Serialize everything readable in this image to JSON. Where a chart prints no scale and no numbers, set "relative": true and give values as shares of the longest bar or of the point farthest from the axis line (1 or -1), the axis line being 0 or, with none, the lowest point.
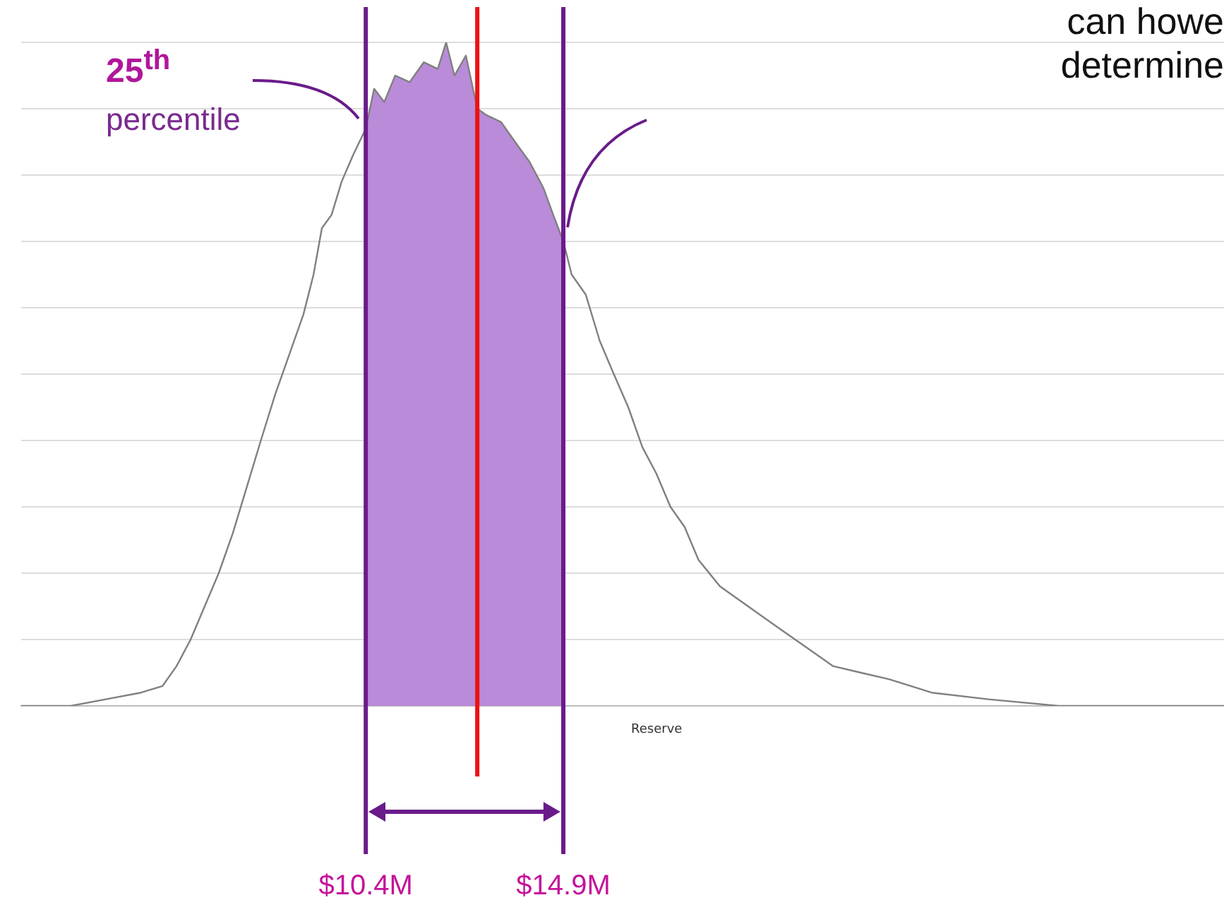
{
  "chart_data": {
    "type": "line",
    "relative": true,
    "xlabel": "Reserve",
    "color": "#808080",
    "grid": "y",
    "tick_labels": "x",
    "legend": false,
    "marker": "none",
    "x": [
      2.55,
      3.68,
      4.48,
      5.28,
      5.77,
      6.09,
      6.41,
      6.73,
      7.05,
      7.37,
      7.69,
      8.01,
      8.34,
      8.66,
      8.98,
      9.21,
      9.4,
      9.62,
      9.85,
      10.11,
      10.4,
      10.59,
      10.82,
      11.07,
      11.4,
      11.72,
      12.04,
      12.23,
      12.42,
      12.68,
      12.94,
      13.16,
      13.48,
      13.8,
      14.13,
      14.45,
      14.67,
      14.9,
      15.09,
      15.41,
      15.73,
      16.05,
      16.38,
      16.7,
      17.02,
      17.34,
      17.66,
      17.98,
      18.47,
      19.11,
      19.75,
      20.4,
      21.04,
      21.68,
      22.33,
      23.29,
      24.58,
      26.18,
      27.79,
      29.95
    ],
    "values": [
      0,
      0,
      0.01,
      0.02,
      0.03,
      0.06,
      0.1,
      0.15,
      0.2,
      0.26,
      0.33,
      0.4,
      0.47,
      0.53,
      0.59,
      0.65,
      0.72,
      0.74,
      0.79,
      0.83,
      0.87,
      0.93,
      0.91,
      0.95,
      0.94,
      0.97,
      0.96,
      1,
      0.95,
      0.98,
      0.9,
      0.89,
      0.88,
      0.85,
      0.82,
      0.78,
      0.74,
      0.7,
      0.65,
      0.62,
      0.55,
      0.5,
      0.45,
      0.39,
      0.35,
      0.3,
      0.27,
      0.22,
      0.18,
      0.15,
      0.12,
      0.09,
      0.06,
      0.05,
      0.04,
      0.02,
      0.01,
      0,
      0,
      0
    ],
    "xlim": [
      2.55,
      29.95
    ],
    "xticks": [
      {
        "value": 10.4,
        "label": "$10.4M"
      },
      {
        "value": 14.9,
        "label": "$14.9M"
      }
    ],
    "bands": [
      {
        "axis": "x",
        "from": 10.4,
        "to": 14.9,
        "color": "#b98bd9"
      }
    ],
    "ref_lines": [
      {
        "axis": "x",
        "value": 10.4,
        "color": "#6a1b8a"
      },
      {
        "axis": "x",
        "value": 14.9,
        "color": "#6a1b8a"
      },
      {
        "axis": "x",
        "value": 12.94,
        "color": "#ee1111",
        "line_style": "solid"
      }
    ],
    "annotations": [
      "25$^{th}$",
      "percentile",
      "can howe",
      "determine"
    ]
  }
}
